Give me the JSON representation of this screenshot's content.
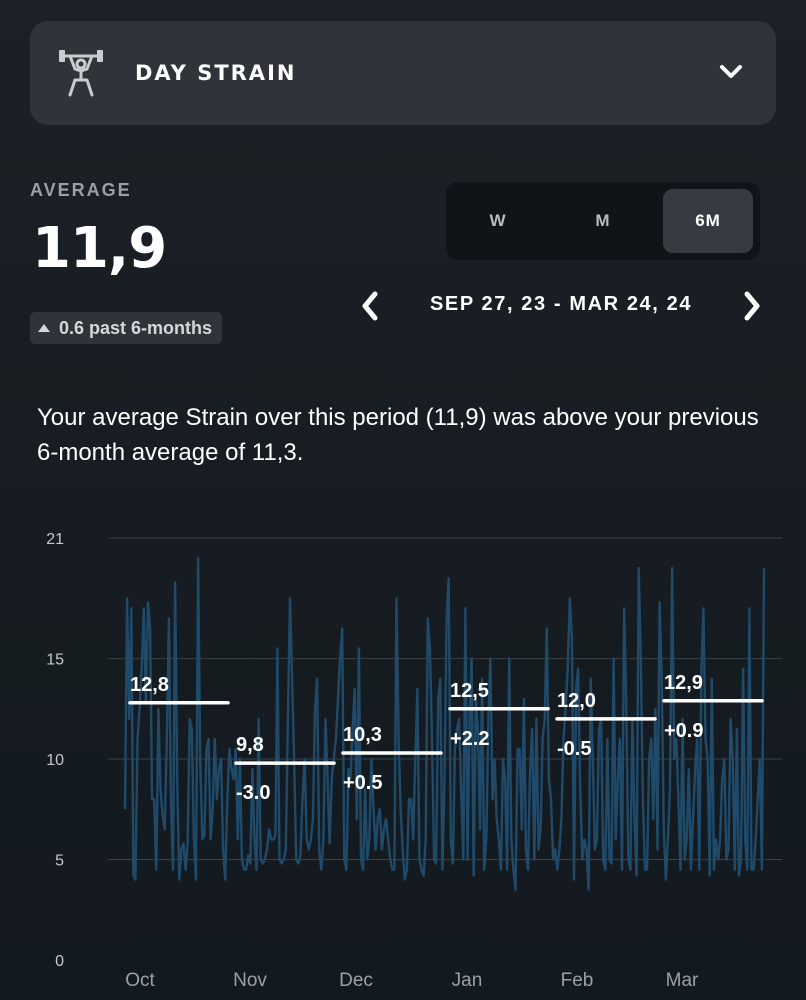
{
  "header": {
    "metric_title": "DAY STRAIN",
    "metric_icon": "weightlifter-icon",
    "dropdown_icon": "chevron-down-icon"
  },
  "summary": {
    "average_label": "AVERAGE",
    "average_value": "11,9",
    "change_text": "0.6 past 6-months",
    "description": "Your average Strain over this period (11,9) was above your previous 6-month average of 11,3."
  },
  "range_tabs": [
    {
      "label": "W",
      "active": false
    },
    {
      "label": "M",
      "active": false
    },
    {
      "label": "6M",
      "active": true
    }
  ],
  "date_nav": {
    "label": "SEP 27, 23 - MAR 24, 24",
    "prev_icon": "chevron-left-icon",
    "next_icon": "chevron-right-icon"
  },
  "colors": {
    "background": "#181e23",
    "card": "#2e3439",
    "series_line": "#1f4a6a",
    "average_line": "#ffffff",
    "grid": "#3a4046"
  },
  "chart_data": {
    "type": "line",
    "xlabel": "",
    "ylabel": "",
    "ylim": [
      0,
      21
    ],
    "yticks": [
      0,
      5,
      10,
      15,
      21
    ],
    "grid": "horizontal",
    "x_tick_labels": [
      "Oct",
      "Nov",
      "Dec",
      "Jan",
      "Feb",
      "Mar"
    ],
    "series": [
      {
        "values": [
          7.5,
          18.0,
          12.0,
          17.5,
          4.2,
          4.0,
          11.0,
          12.5,
          14.5,
          17.5,
          12.8,
          17.8,
          16.5,
          8.0,
          8.0,
          4.5,
          12.5,
          8.5,
          7.2,
          6.5,
          11.0,
          17.0,
          8.0,
          4.5,
          18.8,
          9.0,
          4.0,
          5.5,
          5.8,
          4.5,
          5.8,
          12.0,
          11.5,
          6.0,
          4.0,
          20.0,
          10.0,
          6.0,
          6.2,
          10.5,
          11.0,
          6.0,
          7.5,
          11.0,
          8.0,
          9.5,
          10.0,
          5.5,
          4.0,
          8.0,
          10.5,
          9.5,
          9.0,
          10.5,
          6.0,
          10.0,
          5.0,
          4.5,
          4.5,
          5.2,
          4.8,
          9.5,
          6.0,
          4.5,
          12.0,
          5.0,
          4.8,
          5.0,
          5.5,
          6.5,
          6.0,
          6.0,
          6.2,
          15.5,
          5.0,
          4.8,
          5.0,
          5.5,
          12.0,
          18.0,
          14.0,
          10.0,
          5.0,
          4.8,
          5.2,
          8.0,
          10.0,
          6.0,
          5.5,
          6.0,
          7.0,
          12.5,
          14.0,
          5.5,
          4.5,
          6.0,
          12.0,
          9.0,
          5.8,
          9.0,
          10.0,
          11.0,
          13.0,
          15.0,
          16.5,
          5.0,
          4.5,
          9.5,
          9.0,
          11.5,
          13.5,
          7.0,
          15.5,
          5.0,
          4.5,
          8.5,
          5.0,
          6.0,
          10.0,
          7.5,
          5.5,
          7.0,
          7.5,
          5.5,
          6.5,
          7.0,
          6.0,
          5.0,
          4.5,
          4.5,
          18.0,
          11.0,
          7.5,
          5.5,
          4.0,
          4.5,
          8.0,
          8.0,
          6.0,
          10.0,
          13.5,
          5.0,
          4.5,
          4.2,
          6.0,
          17.0,
          15.5,
          11.0,
          5.0,
          4.8,
          13.0,
          14.0,
          4.5,
          9.0,
          17.0,
          19.0,
          6.0,
          4.8,
          10.5,
          11.5,
          12.0,
          8.5,
          5.0,
          17.5,
          5.0,
          12.0,
          15.0,
          4.2,
          13.0,
          11.5,
          6.5,
          14.0,
          4.5,
          6.0,
          12.0,
          15.0,
          8.0,
          10.0,
          7.0,
          6.0,
          4.5,
          10.0,
          9.0,
          4.5,
          15.0,
          6.0,
          4.5,
          3.5,
          10.5,
          10.5,
          6.5,
          13.0,
          5.5,
          4.5,
          9.5,
          11.5,
          5.0,
          12.0,
          5.5,
          6.5,
          11.0,
          12.0,
          16.5,
          9.0,
          8.0,
          5.0,
          5.5,
          4.5,
          5.5,
          7.0,
          11.0,
          12.5,
          14.5,
          18.0,
          16.0,
          4.0,
          13.5,
          14.5,
          8.5,
          5.0,
          6.0,
          5.5,
          3.5,
          14.0,
          10.0,
          5.5,
          6.0,
          11.5,
          12.0,
          5.0,
          4.5,
          11.0,
          5.0,
          4.8,
          15.0,
          6.0,
          9.0,
          11.0,
          4.5,
          17.5,
          13.0,
          5.0,
          4.5,
          12.0,
          7.0,
          4.2,
          19.5,
          15.0,
          8.0,
          4.5,
          4.5,
          10.0,
          11.0,
          7.0,
          12.5,
          5.5,
          17.8,
          14.0,
          6.5,
          4.0,
          6.0,
          8.5,
          19.5,
          10.0,
          11.0,
          8.0,
          4.5,
          12.0,
          5.0,
          6.0,
          9.5,
          4.5,
          7.0,
          9.5,
          11.0,
          4.5,
          14.5,
          17.5,
          11.0,
          10.0,
          4.2,
          14.0,
          4.5,
          6.0,
          5.0,
          6.0,
          9.0,
          10.0,
          5.0,
          5.5,
          12.0,
          10.0,
          4.5,
          11.5,
          4.2,
          5.0,
          14.5,
          6.0,
          4.5,
          17.5,
          4.5,
          4.5,
          6.0,
          8.0,
          10.0,
          4.5,
          19.5
        ]
      }
    ],
    "period_averages": [
      {
        "label": "12,8",
        "value": 12.8,
        "change": "",
        "period": 0
      },
      {
        "label": "9,8",
        "value": 9.8,
        "change": "-3.0",
        "period": 1
      },
      {
        "label": "10,3",
        "value": 10.3,
        "change": "+0.5",
        "period": 2
      },
      {
        "label": "12,5",
        "value": 12.5,
        "change": "+2.2",
        "period": 3
      },
      {
        "label": "12,0",
        "value": 12.0,
        "change": "-0.5",
        "period": 4
      },
      {
        "label": "12,9",
        "value": 12.9,
        "change": "+0.9",
        "period": 5
      }
    ]
  }
}
